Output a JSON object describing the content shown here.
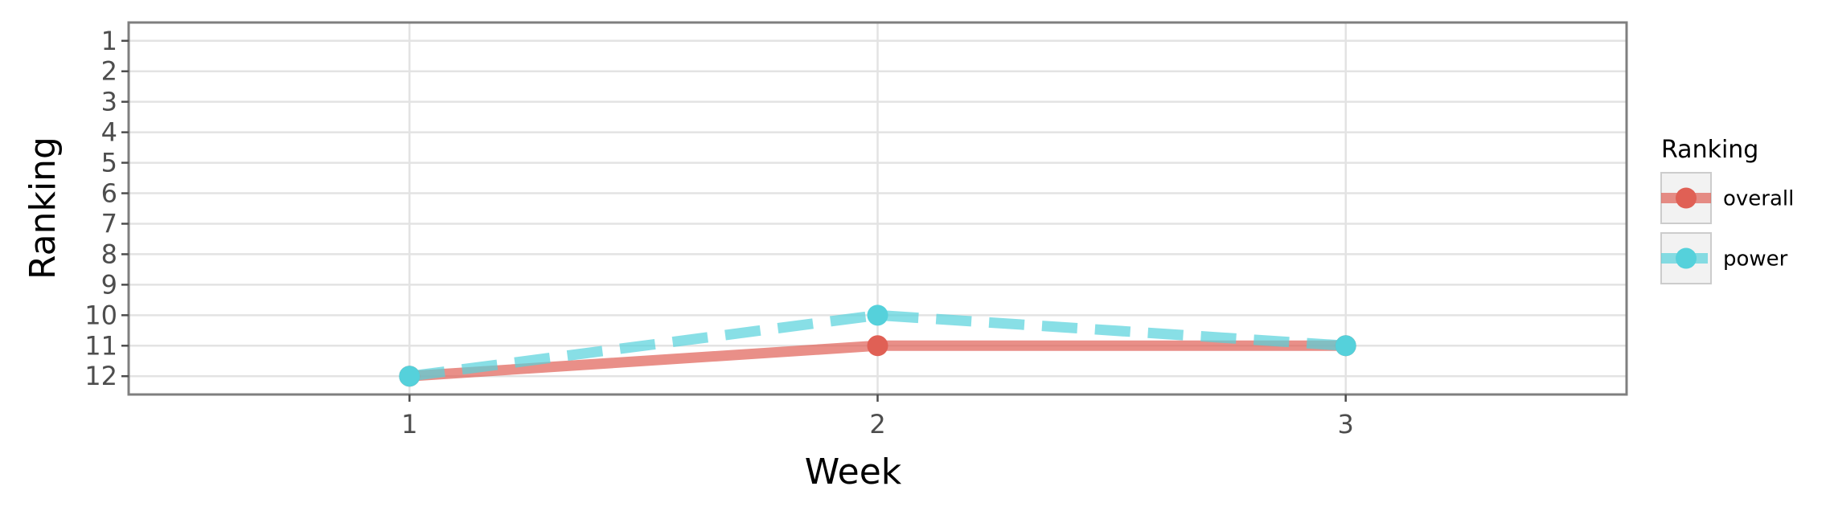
{
  "chart_data": {
    "type": "line",
    "xlabel": "Week",
    "ylabel": "Ranking",
    "x": [
      1,
      2,
      3
    ],
    "xlim": [
      0.4,
      3.6
    ],
    "x_ticks": [
      "1",
      "2",
      "3"
    ],
    "ylim": [
      12.6,
      0.4
    ],
    "y_reversed": true,
    "y_ticks": [
      "1",
      "2",
      "3",
      "4",
      "5",
      "6",
      "7",
      "8",
      "9",
      "10",
      "11",
      "12"
    ],
    "grid": true,
    "legend": {
      "title": "Ranking",
      "placement": "right"
    },
    "series": [
      {
        "name": "overall",
        "values": [
          12,
          11,
          11
        ],
        "color": "#E06055",
        "line_style": "solid"
      },
      {
        "name": "power",
        "values": [
          12,
          10,
          11
        ],
        "color": "#55D1DB",
        "line_style": "dashed"
      }
    ]
  }
}
